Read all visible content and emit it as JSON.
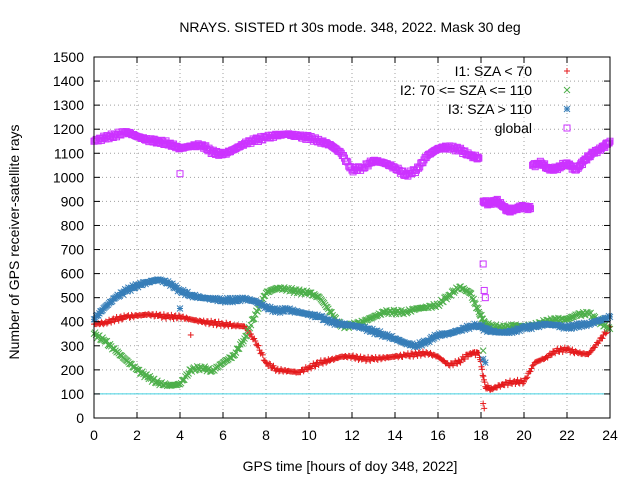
{
  "chart_data": {
    "type": "scatter",
    "title": "NRAYS. SISTED rt 30s mode. 348, 2022. Mask 30 deg",
    "xlabel": "GPS time [hours of doy 348, 2022]",
    "ylabel": "Number of GPS receiver-satellite rays",
    "xlim": [
      0,
      24
    ],
    "ylim": [
      0,
      1500
    ],
    "xticks": [
      0,
      2,
      4,
      6,
      8,
      10,
      12,
      14,
      16,
      18,
      20,
      22,
      24
    ],
    "yticks": [
      0,
      100,
      200,
      300,
      400,
      500,
      600,
      700,
      800,
      900,
      1000,
      1100,
      1200,
      1300,
      1400,
      1500
    ],
    "grid": true,
    "legend_position": "top-right",
    "reference_line": {
      "y": 100,
      "color": "#40d0e0"
    },
    "series": [
      {
        "name": "I1: SZA < 70",
        "marker": "plus",
        "color": "#e41a1c",
        "x": [
          0,
          0.5,
          1,
          1.5,
          2,
          2.5,
          3,
          3.5,
          4,
          4.5,
          5,
          5.5,
          6,
          6.5,
          7,
          7.5,
          8,
          8.5,
          9,
          9.5,
          10,
          10.5,
          11,
          11.5,
          12,
          12.5,
          13,
          13.5,
          14,
          14.5,
          15,
          15.5,
          16,
          16.5,
          17,
          17.5,
          17.9,
          18.2,
          18.5,
          19,
          19.5,
          20,
          20.5,
          21,
          21.5,
          22,
          22.5,
          23,
          23.5,
          24
        ],
        "y": [
          390,
          395,
          410,
          420,
          425,
          430,
          425,
          420,
          420,
          410,
          400,
          395,
          390,
          385,
          380,
          320,
          230,
          200,
          195,
          190,
          210,
          230,
          240,
          255,
          255,
          245,
          245,
          250,
          255,
          260,
          265,
          270,
          255,
          220,
          235,
          270,
          270,
          130,
          120,
          140,
          150,
          150,
          230,
          250,
          280,
          285,
          270,
          265,
          320,
          380
        ],
        "outliers": {
          "x": [
            4.5,
            18.1,
            18.15
          ],
          "y": [
            345,
            60,
            40
          ]
        }
      },
      {
        "name": "I2: 70 <= SZA <= 110",
        "marker": "x",
        "color": "#4daf4a",
        "x": [
          0,
          0.5,
          1,
          1.5,
          2,
          2.5,
          3,
          3.5,
          4,
          4.5,
          5,
          5.5,
          6,
          6.5,
          7,
          7.5,
          8,
          8.5,
          9,
          9.5,
          10,
          10.5,
          11,
          11.5,
          12,
          12.5,
          13,
          13.5,
          14,
          14.5,
          15,
          15.5,
          16,
          16.5,
          17,
          17.5,
          17.9,
          18.2,
          18.5,
          19,
          19.5,
          20,
          20.5,
          21,
          21.5,
          22,
          22.5,
          23,
          23.5,
          24
        ],
        "y": [
          350,
          320,
          280,
          240,
          200,
          170,
          145,
          135,
          140,
          200,
          210,
          195,
          230,
          260,
          330,
          430,
          520,
          540,
          535,
          525,
          520,
          500,
          440,
          380,
          385,
          400,
          420,
          440,
          440,
          440,
          455,
          460,
          470,
          510,
          545,
          520,
          440,
          390,
          380,
          375,
          385,
          380,
          385,
          400,
          410,
          410,
          430,
          435,
          400,
          370
        ],
        "outliers": {
          "x": [
            18.1
          ],
          "y": [
            280
          ]
        }
      },
      {
        "name": "I3: SZA > 110",
        "marker": "star",
        "color": "#377eb8",
        "x": [
          0,
          0.5,
          1,
          1.5,
          2,
          2.5,
          3,
          3.5,
          4,
          4.5,
          5,
          5.5,
          6,
          6.5,
          7,
          7.5,
          8,
          8.5,
          9,
          9.5,
          10,
          10.5,
          11,
          11.5,
          12,
          12.5,
          13,
          13.5,
          14,
          14.5,
          15,
          15.5,
          16,
          16.5,
          17,
          17.5,
          17.9,
          18.2,
          18.5,
          19,
          19.5,
          20,
          20.5,
          21,
          21.5,
          22,
          22.5,
          23,
          23.5,
          24
        ],
        "y": [
          410,
          460,
          500,
          530,
          550,
          565,
          575,
          560,
          530,
          510,
          500,
          495,
          490,
          490,
          495,
          485,
          460,
          445,
          450,
          440,
          430,
          420,
          400,
          390,
          385,
          375,
          360,
          345,
          330,
          310,
          300,
          320,
          345,
          350,
          365,
          380,
          385,
          370,
          360,
          355,
          360,
          375,
          380,
          390,
          385,
          375,
          385,
          390,
          405,
          420
        ],
        "outliers": {
          "x": [
            4,
            18.1,
            18.2
          ],
          "y": [
            455,
            245,
            230
          ]
        }
      },
      {
        "name": "global",
        "marker": "square",
        "color": "#cc33ff",
        "x": [
          0,
          0.5,
          1,
          1.5,
          2,
          2.5,
          3,
          3.5,
          4,
          4.5,
          5,
          5.5,
          6,
          6.5,
          7,
          7.5,
          8,
          8.5,
          9,
          9.5,
          10,
          10.5,
          11,
          11.5,
          12,
          12.5,
          13,
          13.5,
          14,
          14.5,
          15,
          15.5,
          16,
          16.5,
          17,
          17.5,
          17.9
        ],
        "y": [
          1150,
          1165,
          1175,
          1190,
          1170,
          1155,
          1150,
          1140,
          1120,
          1130,
          1135,
          1105,
          1095,
          1115,
          1140,
          1155,
          1165,
          1175,
          1180,
          1170,
          1165,
          1150,
          1135,
          1100,
          1030,
          1040,
          1070,
          1060,
          1040,
          1010,
          1030,
          1090,
          1120,
          1125,
          1115,
          1090,
          1080
        ],
        "segment2": {
          "x": [
            18.1,
            18.4,
            18.7,
            19,
            19.3,
            19.6,
            20,
            20.3
          ],
          "y": [
            900,
            890,
            905,
            880,
            860,
            870,
            880,
            870
          ]
        },
        "segment3": {
          "x": [
            20.4,
            20.8,
            21.2,
            21.6,
            22,
            22.4,
            22.8,
            23.2,
            23.6,
            24
          ],
          "y": [
            1050,
            1060,
            1030,
            1040,
            1060,
            1030,
            1070,
            1100,
            1120,
            1150
          ]
        },
        "outliers": {
          "x": [
            3.6,
            4,
            18.1,
            18.15,
            18.2
          ],
          "y": [
            1130,
            1015,
            640,
            530,
            500
          ]
        }
      }
    ]
  }
}
